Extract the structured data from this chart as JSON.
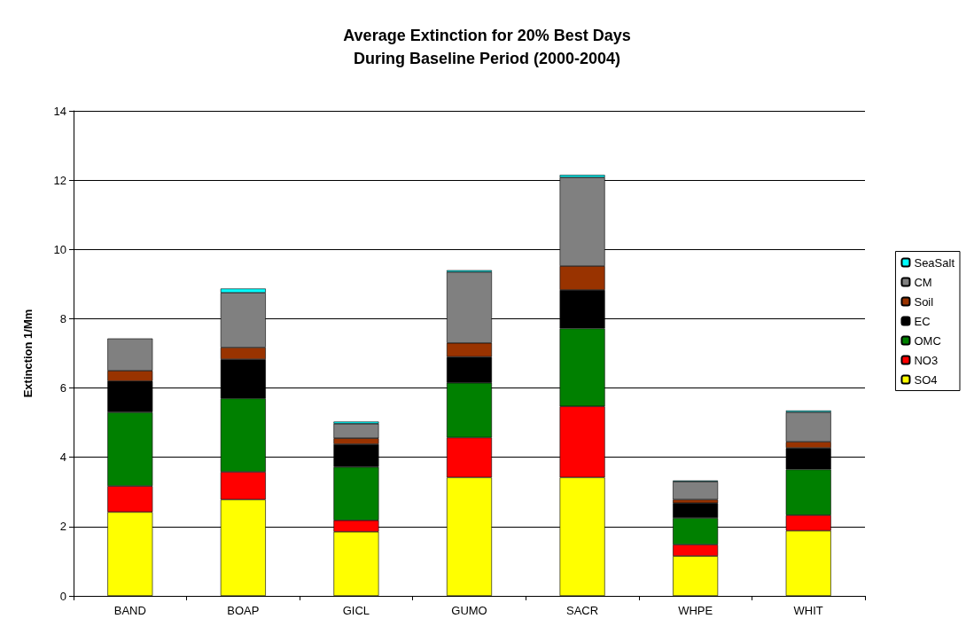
{
  "chart_data": {
    "type": "bar",
    "title": "Average Extinction for 20% Best Days\nDuring Baseline Period (2000-2004)",
    "ylabel": "Extinction 1/Mm",
    "categories": [
      "BAND",
      "BOAP",
      "GICL",
      "GUMO",
      "SACR",
      "WHPE",
      "WHIT"
    ],
    "stacked": true,
    "ylim": [
      0,
      14
    ],
    "yticks": [
      0,
      2,
      4,
      6,
      8,
      10,
      12,
      14
    ],
    "grid": "y",
    "legend": "right",
    "series": [
      {
        "name": "SO4",
        "color": "#ffff00",
        "values": [
          2.42,
          2.78,
          1.85,
          3.42,
          3.42,
          1.15,
          1.88
        ]
      },
      {
        "name": "NO3",
        "color": "#ff0000",
        "values": [
          0.75,
          0.8,
          0.33,
          1.15,
          2.05,
          0.33,
          0.45
        ]
      },
      {
        "name": "OMC",
        "color": "#008000",
        "values": [
          2.13,
          2.12,
          1.54,
          1.58,
          2.25,
          0.77,
          1.32
        ]
      },
      {
        "name": "EC",
        "color": "#000000",
        "values": [
          0.9,
          1.13,
          0.66,
          0.75,
          1.11,
          0.43,
          0.62
        ]
      },
      {
        "name": "Soil",
        "color": "#993300",
        "values": [
          0.3,
          0.34,
          0.17,
          0.4,
          0.69,
          0.1,
          0.18
        ]
      },
      {
        "name": "CM",
        "color": "#808080",
        "values": [
          0.93,
          1.58,
          0.42,
          2.05,
          2.56,
          0.52,
          0.85
        ]
      },
      {
        "name": "SeaSalt",
        "color": "#00ffff",
        "values": [
          null,
          0.12,
          0.06,
          0.05,
          0.07,
          0.03,
          0.05
        ]
      }
    ]
  }
}
